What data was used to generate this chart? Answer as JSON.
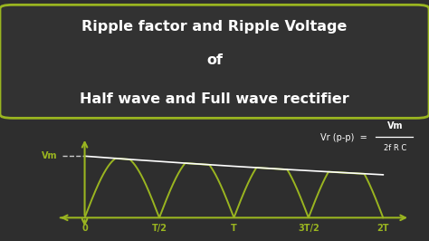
{
  "bg_color": "#2e2e2e",
  "box_bg_color": "#323232",
  "box_edge_color": "#9ab520",
  "title_line1": "Ripple factor and Ripple Voltage",
  "title_line2": "of",
  "title_line3": "Half wave and Full wave rectifier",
  "title_color": "#ffffff",
  "wave_color": "#9ab520",
  "axis_color": "#9ab520",
  "vm_label": "Vm",
  "vm_color": "#9ab520",
  "dashed_color": "#cccccc",
  "envelope_color": "#ffffff",
  "formula_color": "#ffffff",
  "x_labels": [
    "0",
    "T/2",
    "T",
    "3T/2",
    "2T"
  ],
  "x_positions": [
    0.0,
    0.5,
    1.0,
    1.5,
    2.0
  ],
  "envelope_decay": 0.18,
  "wave_amplitude": 1.0,
  "title_fontsize": 11.5,
  "label_fontsize": 7.0,
  "formula_fontsize": 7.0
}
